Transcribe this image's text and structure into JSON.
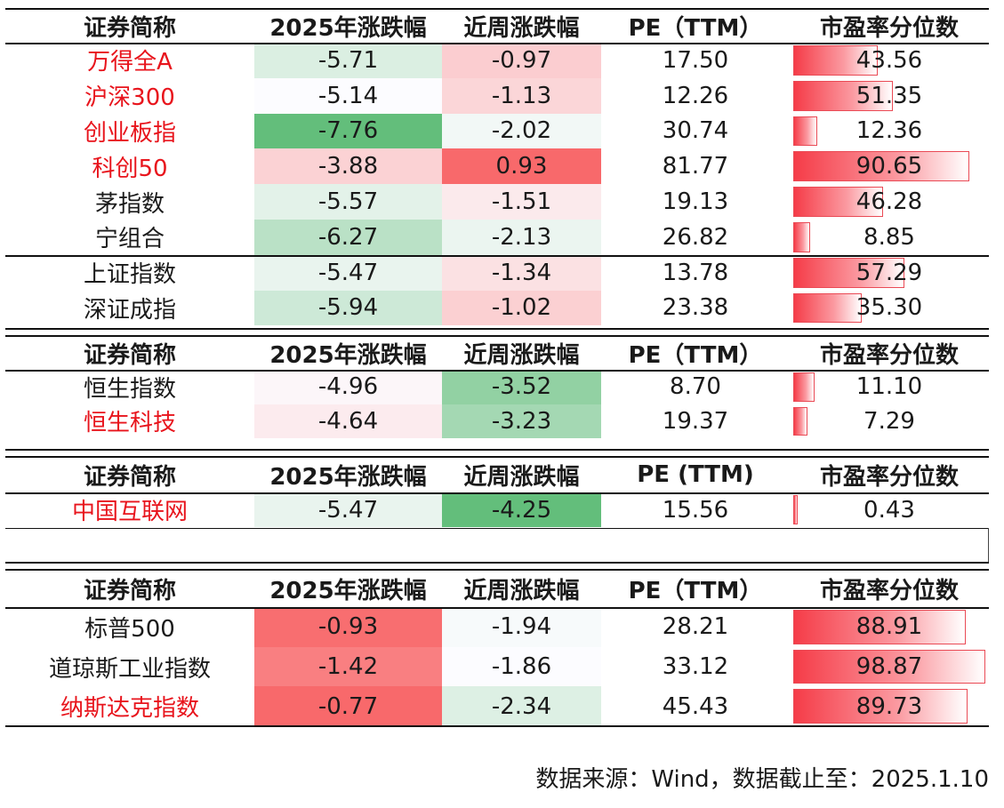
{
  "headers": [
    "证券简称",
    "2025年涨跌幅",
    "近周涨跌幅",
    "PE（TTM）",
    "市盈率分位数"
  ],
  "headers_alt": [
    "证券简称",
    "2025年涨跌幅",
    "近周涨跌幅",
    "PE (TTM)",
    "市盈率分位数"
  ],
  "colors": {
    "highlight_text": "#e8141c",
    "up": "#f8696b",
    "down": "#63be7b",
    "bar": "#f53c48"
  },
  "chart_data": {
    "type": "table",
    "columns": [
      "证券简称",
      "2025年涨跌幅",
      "近周涨跌幅",
      "PE（TTM）",
      "市盈率分位数"
    ],
    "groups": [
      {
        "rows": [
          {
            "name": "万得全A",
            "ytd": "-5.71",
            "week": "-0.97",
            "pe": "17.50",
            "pct": "43.56",
            "highlight": true
          },
          {
            "name": "沪深300",
            "ytd": "-5.14",
            "week": "-1.13",
            "pe": "12.26",
            "pct": "51.35",
            "highlight": true
          },
          {
            "name": "创业板指",
            "ytd": "-7.76",
            "week": "-2.02",
            "pe": "30.74",
            "pct": "12.36",
            "highlight": true
          },
          {
            "name": "科创50",
            "ytd": "-3.88",
            "week": "0.93",
            "pe": "81.77",
            "pct": "90.65",
            "highlight": true
          },
          {
            "name": "茅指数",
            "ytd": "-5.57",
            "week": "-1.51",
            "pe": "19.13",
            "pct": "46.28",
            "highlight": false
          },
          {
            "name": "宁组合",
            "ytd": "-6.27",
            "week": "-2.13",
            "pe": "26.82",
            "pct": "8.85",
            "highlight": false
          },
          {
            "name": "上证指数",
            "ytd": "-5.47",
            "week": "-1.34",
            "pe": "13.78",
            "pct": "57.29",
            "highlight": false
          },
          {
            "name": "深证成指",
            "ytd": "-5.94",
            "week": "-1.02",
            "pe": "23.38",
            "pct": "35.30",
            "highlight": false
          }
        ]
      },
      {
        "rows": [
          {
            "name": "恒生指数",
            "ytd": "-4.96",
            "week": "-3.52",
            "pe": "8.70",
            "pct": "11.10",
            "highlight": false
          },
          {
            "name": "恒生科技",
            "ytd": "-4.64",
            "week": "-3.23",
            "pe": "19.37",
            "pct": "7.29",
            "highlight": true
          }
        ]
      },
      {
        "rows": [
          {
            "name": "中国互联网",
            "ytd": "-5.47",
            "week": "-4.25",
            "pe": "15.56",
            "pct": "0.43",
            "highlight": true
          }
        ]
      },
      {
        "rows": [
          {
            "name": "标普500",
            "ytd": "-0.93",
            "week": "-1.94",
            "pe": "28.21",
            "pct": "88.91",
            "highlight": false
          },
          {
            "name": "道琼斯工业指数",
            "ytd": "-1.42",
            "week": "-1.86",
            "pe": "33.12",
            "pct": "98.87",
            "highlight": false
          },
          {
            "name": "纳斯达克指数",
            "ytd": "-0.77",
            "week": "-2.34",
            "pe": "45.43",
            "pct": "89.73",
            "highlight": true
          }
        ]
      }
    ]
  },
  "source": "数据来源：Wind，数据截止至：2025.1.10"
}
